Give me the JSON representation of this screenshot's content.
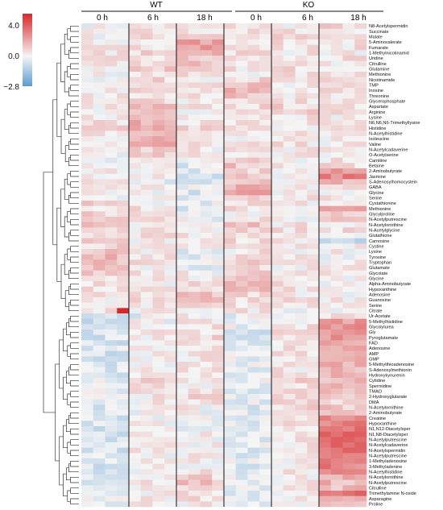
{
  "chart_data": {
    "type": "heatmap",
    "groups": [
      "WT",
      "KO"
    ],
    "timepoints": [
      "0 h",
      "6 h",
      "18 h"
    ],
    "replicates_per_timepoint": 4,
    "colorbar": {
      "ticks": [
        "4.0",
        "0.0",
        "−2.8"
      ],
      "min": -2.8,
      "mid": 0,
      "max": 4.0,
      "colors": {
        "low": "#5b9bd0",
        "mid": "#f5f5f5",
        "high": "#d7282a"
      }
    },
    "rows": [
      "N8-Acetylspermidin",
      "Succinate",
      "Malate",
      "5-Aminovalerate",
      "Fumarate",
      "1-Methylnicotinamid",
      "Uridine",
      "Citrulline",
      "Glutamine",
      "Methionine",
      "Nicotinamide",
      "TMP",
      "Inosine",
      "Threonine",
      "Glycerophosphate",
      "Aspartate",
      "Arginine",
      "Lysine",
      "N6,N6,N6-Trimethyllysine",
      "Histidine",
      "N-Acetylhistidine",
      "Isoleucine",
      "Valine",
      "N-Acetylcadaverine",
      "O-Acetylserine",
      "Carnitine",
      "Betaine",
      "2-Aminobutyrate",
      "Jasmine",
      "S-Adenosylhomocystein",
      "GABA",
      "Glycine",
      "Serine",
      "Cystathionine",
      "Methionine",
      "Glycylproline",
      "N-Acetylputrescine",
      "N-Acetylornithine",
      "N-Acetylglycine",
      "Glutathione",
      "Carnosine",
      "Cystine",
      "Lysine",
      "Tyrosine",
      "Tryptophan",
      "Glutamate",
      "Glycolate",
      "Glycine",
      "Alpha-Aminobutyrate",
      "Hypoxanthine",
      "Adenosine",
      "Guanosine",
      "Serine",
      "Citrate",
      "Ur-Acetate",
      "5-Methylhistidine",
      "Glycolylurea",
      "Gly",
      "Pyroglutamate",
      "FAD",
      "Adenosine",
      "AMP",
      "GMP",
      "5-Methylthioadenosine",
      "S-Adenosylmethionin",
      "Hydroxykynurenin",
      "Cytidine",
      "Spermidine",
      "TMAO",
      "2-Hydroxyglutarate",
      "DMA",
      "N-Acetylornithine",
      "2-Aminobutyrate",
      "Creatine",
      "Hypoxanthine",
      "N1,N12-Diacetylsper",
      "N1,N8-Diacetylsper",
      "N-Acetylputrescine",
      "N-Acetylcadaverine",
      "N-Acetylspermidin",
      "N-Acetylputrescine",
      "1-Methyladenosine",
      "3-Methyladenine",
      "N-Acetylhistidine",
      "N-Acetylornithine",
      "N-Acetylputrescine",
      "Citrulline",
      "Trimethylamine N-oxide",
      "Asparagine",
      "Proline"
    ],
    "row_patterns": [
      [
        0.05,
        0.3,
        0.2,
        0.4,
        0.2,
        0.6
      ],
      [
        0,
        0.3,
        0.3,
        0.3,
        0.4,
        0.3
      ],
      [
        0.1,
        0.4,
        1.0,
        0.4,
        0.5,
        0.4
      ],
      [
        0,
        0.2,
        1.6,
        0.5,
        0.3,
        0.3
      ],
      [
        0.2,
        0.5,
        1.9,
        0.4,
        0.3,
        0.4
      ],
      [
        0.3,
        0.5,
        1.5,
        0.6,
        0.3,
        0.2
      ],
      [
        0.2,
        0.3,
        0.8,
        0.3,
        0.2,
        0.3
      ],
      [
        0.2,
        0.6,
        0.9,
        0.4,
        0.4,
        0.3
      ],
      [
        0.1,
        0.9,
        0.4,
        0.3,
        0.5,
        0.5
      ],
      [
        0,
        0.4,
        0.3,
        0.2,
        0.3,
        0.6
      ],
      [
        0.1,
        0.5,
        0.3,
        0.6,
        0.3,
        0.3
      ],
      [
        0.2,
        0.3,
        0.2,
        0.8,
        0.2,
        0.2
      ],
      [
        0.2,
        0.4,
        0.2,
        1.2,
        0.3,
        0.4
      ],
      [
        0.2,
        0.6,
        0.3,
        0.9,
        0.3,
        0.3
      ],
      [
        0.1,
        0.7,
        0.3,
        0.5,
        0.4,
        0.3
      ],
      [
        0.2,
        1.0,
        0.3,
        0.5,
        0.6,
        0.2
      ],
      [
        0.3,
        1.2,
        0.2,
        0.3,
        0.6,
        0.3
      ],
      [
        0.3,
        1.0,
        0.5,
        0.4,
        0.4,
        0.2
      ],
      [
        0.4,
        1.2,
        0.4,
        0.3,
        0.3,
        0.2
      ],
      [
        0.5,
        1.4,
        0.6,
        0.3,
        0.3,
        0.3
      ],
      [
        0.3,
        1.0,
        0.4,
        0.2,
        0.2,
        0.3
      ],
      [
        0.2,
        1.2,
        0.5,
        0.2,
        0.4,
        0.2
      ],
      [
        0.4,
        1.4,
        0.3,
        0.3,
        0.3,
        0.2
      ],
      [
        0.2,
        0.7,
        0.2,
        0.4,
        0.2,
        0.2
      ],
      [
        0.1,
        0.6,
        0.2,
        0.3,
        0.3,
        0.2
      ],
      [
        0,
        0.2,
        -0.2,
        0.5,
        0.2,
        0.4
      ],
      [
        0.2,
        0.1,
        -0.3,
        0.9,
        0.1,
        0.5
      ],
      [
        0.3,
        0,
        -0.4,
        0.6,
        0.2,
        1.5
      ],
      [
        0.3,
        0,
        -0.4,
        0.8,
        0.2,
        2.2
      ],
      [
        0.2,
        -0.1,
        -0.3,
        1.0,
        0.1,
        1.2
      ],
      [
        0.4,
        0.1,
        -0.3,
        1.2,
        0.1,
        0.4
      ],
      [
        0.3,
        0.1,
        -0.4,
        1.4,
        0.2,
        0.2
      ],
      [
        0.2,
        0,
        -0.2,
        1.0,
        0.2,
        0.3
      ],
      [
        0.9,
        0.2,
        -0.2,
        0.6,
        0.2,
        0.4
      ],
      [
        0.5,
        0.3,
        -0.4,
        0.4,
        0.2,
        1.4
      ],
      [
        0.7,
        0.2,
        -0.2,
        0.3,
        0.2,
        1.0
      ],
      [
        0.6,
        0.4,
        -0.1,
        0.7,
        0.2,
        0.6
      ],
      [
        0.8,
        0.3,
        0.1,
        1.0,
        0.3,
        0.4
      ],
      [
        0.4,
        0.3,
        0.2,
        0.8,
        0.4,
        0.5
      ],
      [
        0.5,
        0.3,
        0.3,
        0.6,
        0.2,
        0.3
      ],
      [
        0.6,
        0.2,
        0.2,
        0.5,
        0.3,
        -0.9
      ],
      [
        0.6,
        0.1,
        0.2,
        0.4,
        0.2,
        0.2
      ],
      [
        0.9,
        0.2,
        -0.2,
        0.3,
        0.2,
        0.1
      ],
      [
        1.1,
        0.2,
        -0.2,
        0.4,
        0.2,
        0.1
      ],
      [
        1.2,
        0.3,
        -0.1,
        0.6,
        0.2,
        0.1
      ],
      [
        1.1,
        0.2,
        -0.2,
        0.5,
        0.2,
        0.1
      ],
      [
        0.8,
        0.2,
        0.1,
        0.7,
        0.3,
        0.1
      ],
      [
        0.6,
        0.3,
        0.2,
        1.0,
        0.4,
        0.1
      ],
      [
        0.4,
        0.2,
        0.4,
        1.4,
        0.3,
        0.1
      ],
      [
        0.3,
        0.2,
        0.5,
        1.1,
        0.3,
        0.2
      ],
      [
        0.2,
        0.4,
        0.9,
        0.6,
        0.3,
        0.2
      ],
      [
        0.1,
        0.7,
        1.2,
        0.4,
        0.4,
        0.2
      ],
      [
        0.2,
        0.3,
        0.5,
        0.4,
        0.3,
        0.3
      ],
      [
        0.3,
        0.1,
        0.2,
        0.3,
        0.1,
        0.2
      ],
      [
        -0.6,
        -0.2,
        0.1,
        -0.2,
        0.1,
        0.4
      ],
      [
        -0.6,
        0,
        0.4,
        -0.3,
        0.3,
        1.7
      ],
      [
        -0.5,
        0.1,
        0.3,
        -0.2,
        0.4,
        1.8
      ],
      [
        -0.5,
        0.2,
        0.2,
        -0.4,
        0.3,
        1.7
      ],
      [
        -0.6,
        0.1,
        0.5,
        -0.3,
        0.3,
        1.9
      ],
      [
        -0.5,
        0.2,
        0.4,
        -0.3,
        0.5,
        1.6
      ],
      [
        -0.4,
        0.2,
        0.3,
        -0.3,
        0.4,
        1.5
      ],
      [
        -0.5,
        0.1,
        0.2,
        -0.2,
        0.4,
        1.4
      ],
      [
        -0.5,
        0.1,
        0.2,
        -0.3,
        0.3,
        1.5
      ],
      [
        -0.4,
        0.2,
        0.3,
        -0.2,
        0.4,
        1.4
      ],
      [
        -0.5,
        0.1,
        0.2,
        -0.3,
        0.3,
        1.3
      ],
      [
        -0.4,
        0.1,
        0.2,
        -0.2,
        0.5,
        1.2
      ],
      [
        -0.3,
        0.5,
        0.2,
        -0.2,
        0.6,
        1.1
      ],
      [
        -0.3,
        0.6,
        0.1,
        -0.3,
        0.4,
        1.0
      ],
      [
        -0.2,
        0.4,
        0.3,
        -0.3,
        0.5,
        0.9
      ],
      [
        -0.3,
        0.2,
        0.5,
        -0.2,
        0.4,
        0.8
      ],
      [
        -0.4,
        0.2,
        0.4,
        -0.2,
        0.8,
        0.6
      ],
      [
        -0.5,
        0.1,
        0.1,
        -0.3,
        0.5,
        0.8
      ],
      [
        -0.5,
        0.1,
        0,
        -0.3,
        0.3,
        1.2
      ],
      [
        -0.5,
        0,
        0,
        -0.3,
        0.2,
        1.9
      ],
      [
        -0.4,
        0.1,
        0.1,
        -0.2,
        0.3,
        2.1
      ],
      [
        -0.5,
        0,
        0,
        -0.3,
        0.2,
        2.4
      ],
      [
        -0.5,
        0.1,
        0.1,
        -0.3,
        0.2,
        2.5
      ],
      [
        -0.4,
        0,
        0.1,
        -0.3,
        0.2,
        2.6
      ],
      [
        -0.4,
        0.1,
        0.1,
        -0.2,
        0.3,
        2.7
      ],
      [
        -0.5,
        0.2,
        0.2,
        -0.3,
        0.3,
        2.4
      ],
      [
        -0.4,
        0.1,
        0.2,
        -0.3,
        0.2,
        2.3
      ],
      [
        -0.4,
        0,
        0.1,
        -0.2,
        0.2,
        2.0
      ],
      [
        -0.5,
        0.1,
        0.1,
        -0.3,
        0.2,
        2.2
      ],
      [
        -0.4,
        0.2,
        0.3,
        -0.3,
        0.3,
        1.8
      ],
      [
        -0.3,
        0.3,
        0.6,
        -0.2,
        0.2,
        1.5
      ],
      [
        -0.3,
        0.3,
        1.0,
        -0.2,
        0.3,
        1.2
      ],
      [
        -0.4,
        0.2,
        0.3,
        -0.2,
        0.2,
        1.1
      ],
      [
        -0.3,
        0.1,
        0.3,
        -0.3,
        0.2,
        2.6
      ],
      [
        -0.3,
        0.1,
        0.4,
        -0.2,
        0.2,
        1.7
      ],
      [
        -0.2,
        0.2,
        0.2,
        -0.2,
        0.1,
        0.9
      ]
    ],
    "highlights": [
      {
        "row": 53,
        "group": "WT",
        "timepoint": "0 h",
        "replicate": 4,
        "value": 4.0
      }
    ],
    "dendrogram": true
  }
}
